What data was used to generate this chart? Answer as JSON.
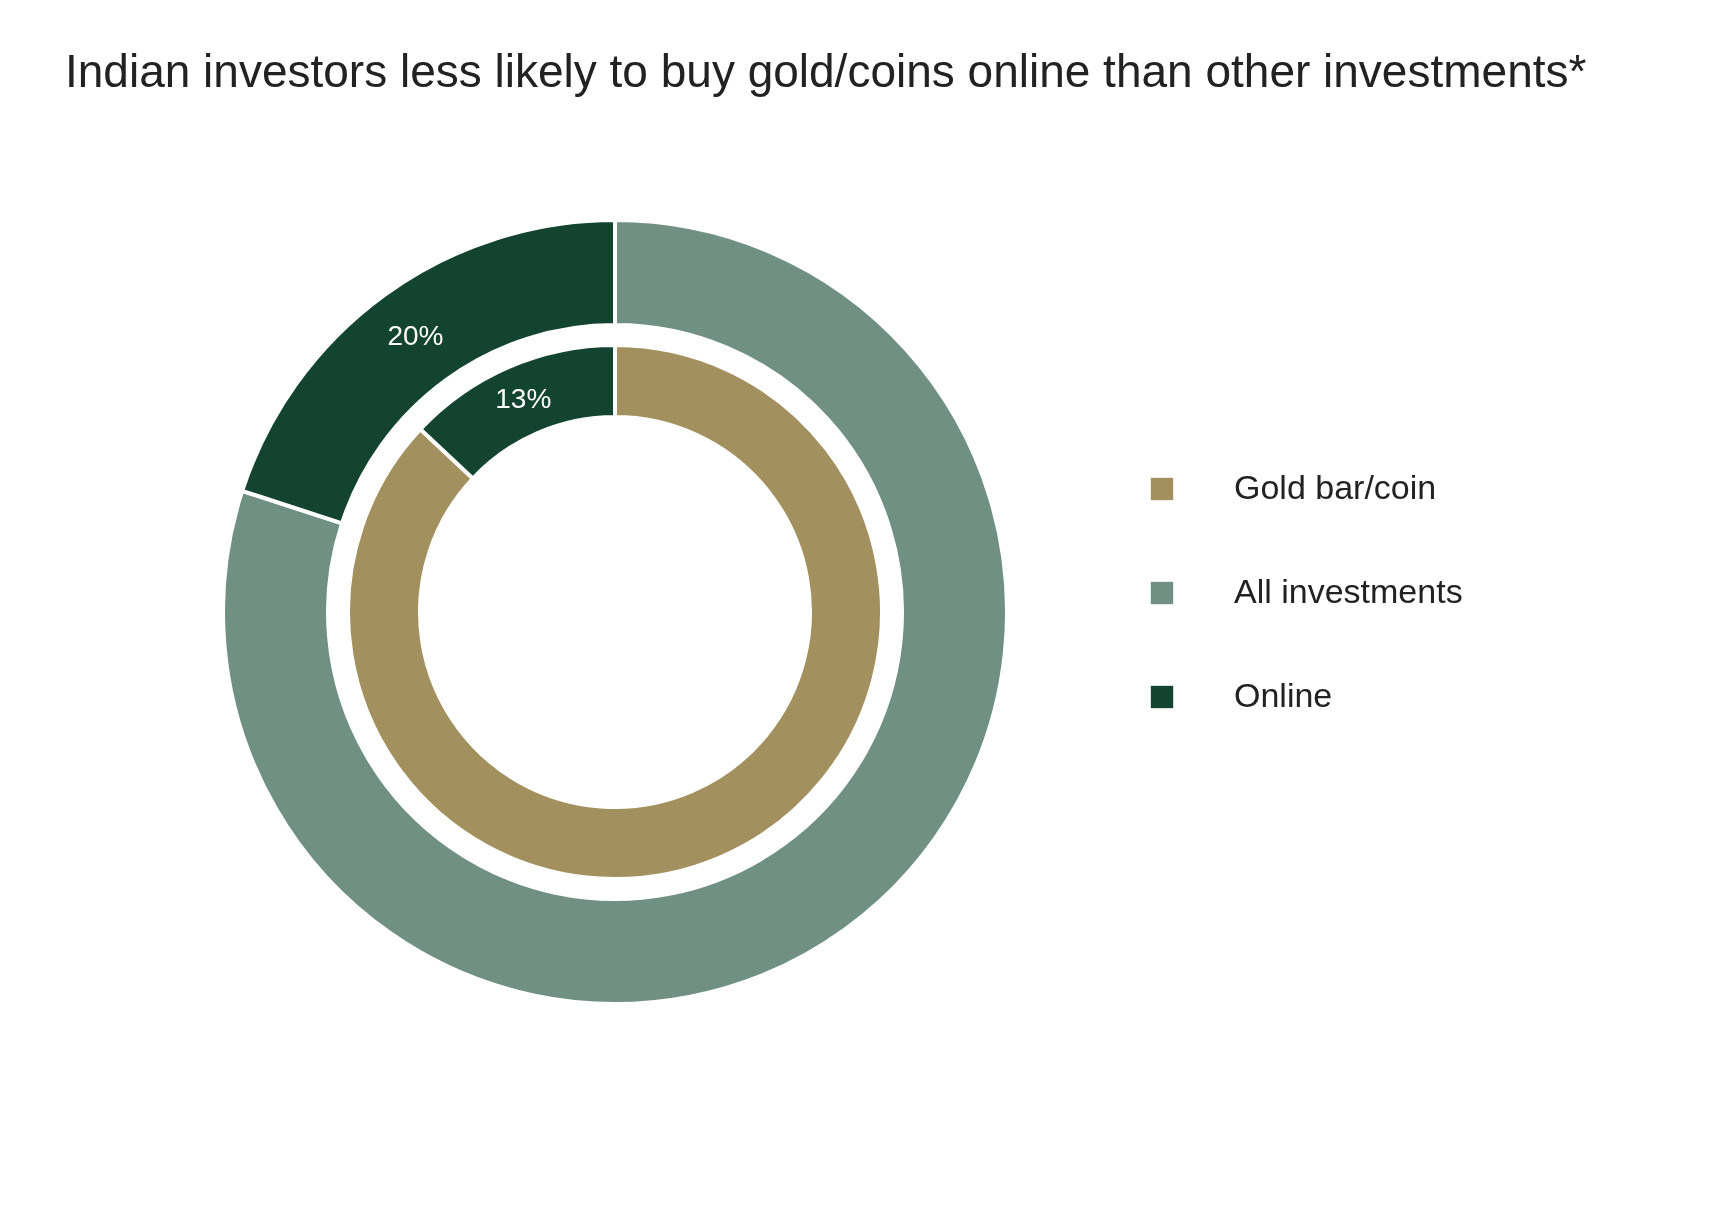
{
  "chart_data": {
    "type": "donut",
    "title": "Indian investors less likely to buy gold/coins online than other investments*",
    "categories": [
      "Gold bar/coin",
      "All investments",
      "Online"
    ],
    "colors": [
      "#a3905f",
      "#6f9083",
      "#124430"
    ],
    "series": [
      {
        "values": [
          87,
          null,
          13
        ],
        "value_labels": [
          null,
          null,
          "13%"
        ]
      },
      {
        "values": [
          null,
          80,
          20
        ],
        "value_labels": [
          null,
          null,
          "20%"
        ]
      }
    ],
    "legend": "right"
  }
}
